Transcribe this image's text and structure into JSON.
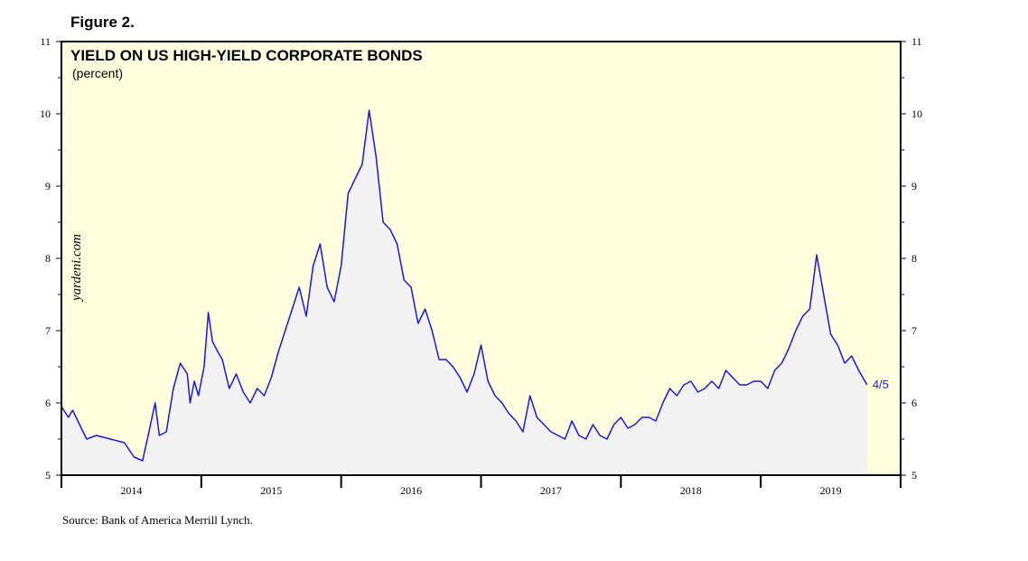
{
  "figure_label": "Figure 2.",
  "source": "Source: Bank of America Merrill Lynch.",
  "watermark": "yardeni.com",
  "colors": {
    "line": "#1a1ad6",
    "plot_bg": "#ffffe0",
    "area": "#f2f2f2"
  },
  "chart_data": {
    "type": "line",
    "title": "YIELD ON US HIGH-YIELD CORPORATE BONDS",
    "subtitle": "(percent)",
    "ylim": [
      5,
      11
    ],
    "y_ticks": [
      "5",
      "6",
      "7",
      "8",
      "9",
      "10",
      "11"
    ],
    "x_range": [
      2013.5,
      2019.5
    ],
    "x_ticks": [
      "2014",
      "2015",
      "2016",
      "2017",
      "2018",
      "2019"
    ],
    "last_label": "4/5",
    "series": [
      {
        "name": "US High-Yield Corporate Bond Yield",
        "x": [
          2013.5,
          2013.55,
          2013.58,
          2013.63,
          2013.68,
          2013.75,
          2013.85,
          2013.95,
          2014.02,
          2014.08,
          2014.12,
          2014.17,
          2014.2,
          2014.25,
          2014.3,
          2014.35,
          2014.4,
          2014.42,
          2014.45,
          2014.48,
          2014.52,
          2014.55,
          2014.58,
          2014.62,
          2014.65,
          2014.7,
          2014.75,
          2014.8,
          2014.85,
          2014.9,
          2014.95,
          2015.0,
          2015.05,
          2015.1,
          2015.15,
          2015.2,
          2015.25,
          2015.3,
          2015.35,
          2015.4,
          2015.45,
          2015.5,
          2015.55,
          2015.6,
          2015.65,
          2015.7,
          2015.75,
          2015.8,
          2015.85,
          2015.9,
          2015.95,
          2016.0,
          2016.05,
          2016.1,
          2016.15,
          2016.2,
          2016.25,
          2016.3,
          2016.35,
          2016.4,
          2016.45,
          2016.5,
          2016.55,
          2016.6,
          2016.65,
          2016.7,
          2016.75,
          2016.8,
          2016.85,
          2016.9,
          2016.95,
          2017.0,
          2017.05,
          2017.1,
          2017.15,
          2017.2,
          2017.25,
          2017.3,
          2017.35,
          2017.4,
          2017.45,
          2017.5,
          2017.55,
          2017.6,
          2017.65,
          2017.7,
          2017.75,
          2017.8,
          2017.85,
          2017.9,
          2017.95,
          2018.0,
          2018.05,
          2018.1,
          2018.15,
          2018.2,
          2018.25,
          2018.3,
          2018.35,
          2018.4,
          2018.45,
          2018.5,
          2018.55,
          2018.6,
          2018.65,
          2018.7,
          2018.75,
          2018.8,
          2018.85,
          2018.9,
          2018.95,
          2019.0,
          2019.05,
          2019.1,
          2019.15,
          2019.2,
          2019.23,
          2019.26
        ],
        "values": [
          5.95,
          5.8,
          5.9,
          5.7,
          5.5,
          5.55,
          5.5,
          5.45,
          5.25,
          5.2,
          5.55,
          6.0,
          5.55,
          5.6,
          6.2,
          6.55,
          6.4,
          6.0,
          6.3,
          6.1,
          6.5,
          7.25,
          6.85,
          6.7,
          6.6,
          6.2,
          6.4,
          6.15,
          6.0,
          6.2,
          6.1,
          6.35,
          6.7,
          7.0,
          7.3,
          7.6,
          7.2,
          7.9,
          8.2,
          7.6,
          7.4,
          7.9,
          8.9,
          9.1,
          9.3,
          10.05,
          9.4,
          8.5,
          8.4,
          8.2,
          7.7,
          7.6,
          7.1,
          7.3,
          7.0,
          6.6,
          6.6,
          6.5,
          6.35,
          6.15,
          6.4,
          6.8,
          6.3,
          6.1,
          6.0,
          5.85,
          5.75,
          5.6,
          6.1,
          5.8,
          5.7,
          5.6,
          5.55,
          5.5,
          5.75,
          5.55,
          5.5,
          5.7,
          5.55,
          5.5,
          5.7,
          5.8,
          5.65,
          5.7,
          5.8,
          5.8,
          5.75,
          6.0,
          6.2,
          6.1,
          6.25,
          6.3,
          6.15,
          6.2,
          6.3,
          6.2,
          6.45,
          6.35,
          6.25,
          6.25,
          6.3,
          6.3,
          6.2,
          6.45,
          6.55,
          6.75,
          7.0,
          7.2,
          7.3,
          8.05,
          7.5,
          6.95,
          6.8,
          6.55,
          6.65,
          6.45,
          6.35,
          6.25
        ]
      }
    ]
  }
}
